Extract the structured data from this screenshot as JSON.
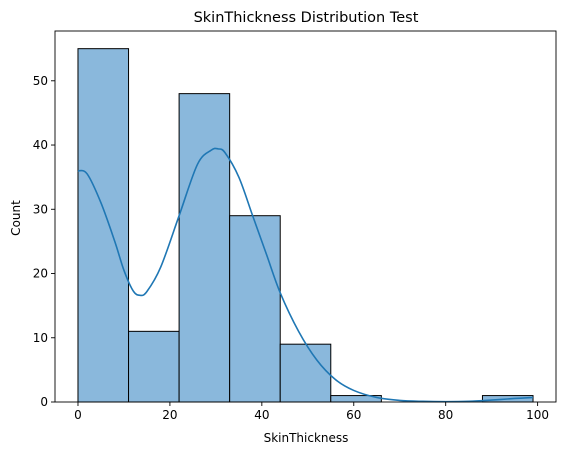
{
  "chart_data": {
    "type": "bar",
    "title": "SkinThickness Distribution Test",
    "xlabel": "SkinThickness",
    "ylabel": "Count",
    "xlim": [
      -5,
      104
    ],
    "ylim": [
      0,
      57.75
    ],
    "x_ticks": [
      0,
      20,
      40,
      60,
      80,
      100
    ],
    "y_ticks": [
      0,
      10,
      20,
      30,
      40,
      50
    ],
    "bins": [
      {
        "start": 0,
        "end": 11,
        "count": 55
      },
      {
        "start": 11,
        "end": 22,
        "count": 11
      },
      {
        "start": 22,
        "end": 33,
        "count": 48
      },
      {
        "start": 33,
        "end": 44,
        "count": 29
      },
      {
        "start": 44,
        "end": 55,
        "count": 9
      },
      {
        "start": 55,
        "end": 66,
        "count": 1
      },
      {
        "start": 66,
        "end": 77,
        "count": 0
      },
      {
        "start": 77,
        "end": 88,
        "count": 0
      },
      {
        "start": 88,
        "end": 99,
        "count": 1
      }
    ],
    "kde": {
      "x": [
        0,
        2,
        5,
        8,
        10,
        12,
        13.5,
        15,
        18,
        22,
        26,
        29,
        30.5,
        32,
        35,
        38,
        41,
        44,
        48,
        52,
        56,
        60,
        65,
        70,
        75,
        80,
        85,
        90,
        95,
        99
      ],
      "y": [
        36,
        35.5,
        31,
        25,
        20.5,
        17.3,
        16.6,
        17.2,
        21,
        29,
        37,
        39.2,
        39.4,
        38.8,
        35,
        29,
        23,
        17,
        11,
        6.5,
        3.5,
        1.8,
        0.7,
        0.25,
        0.1,
        0.05,
        0.1,
        0.3,
        0.55,
        0.7
      ]
    },
    "colors": {
      "bar_fill": "#8ab8dc",
      "bar_edge": "#000000",
      "kde_line": "#1f77b4"
    },
    "grid": false,
    "legend": "none"
  }
}
